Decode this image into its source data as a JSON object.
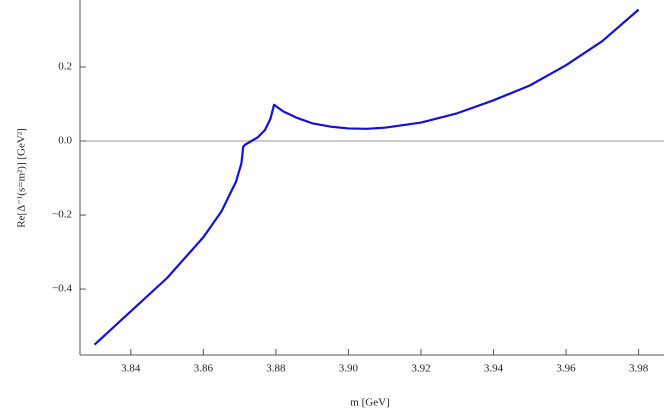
{
  "chart_data": {
    "type": "line",
    "x_label": "m [GeV]",
    "y_label": "Re[Δ⁻¹(s=m²)] [GeV²]",
    "series": [
      {
        "color": "#1010e0",
        "x": [
          3.83,
          3.84,
          3.85,
          3.86,
          3.865,
          3.869,
          3.8705,
          3.871,
          3.8715,
          3.875,
          3.877,
          3.8785,
          3.8795,
          3.882,
          3.886,
          3.89,
          3.895,
          3.9,
          3.905,
          3.91,
          3.92,
          3.93,
          3.94,
          3.95,
          3.96,
          3.97,
          3.98
        ],
        "values": [
          -0.55,
          -0.46,
          -0.37,
          -0.26,
          -0.19,
          -0.11,
          -0.06,
          -0.015,
          -0.01,
          0.01,
          0.03,
          0.06,
          0.098,
          0.08,
          0.062,
          0.048,
          0.039,
          0.034,
          0.033,
          0.036,
          0.05,
          0.075,
          0.11,
          0.15,
          0.205,
          0.27,
          0.355
        ]
      }
    ],
    "xlim": [
      3.826,
      3.987
    ],
    "ylim": [
      -0.578,
      0.381
    ],
    "xticks": [
      3.84,
      3.86,
      3.88,
      {
        "value": 3.9,
        "label": "3.90"
      },
      3.92,
      3.94,
      3.96,
      3.98
    ],
    "yticks": [
      {
        "value": -0.4,
        "label": "−0.4"
      },
      {
        "value": -0.2,
        "label": "−0.2"
      },
      {
        "value": 0,
        "label": "0.0"
      },
      0.2
    ],
    "zero_line": true
  }
}
